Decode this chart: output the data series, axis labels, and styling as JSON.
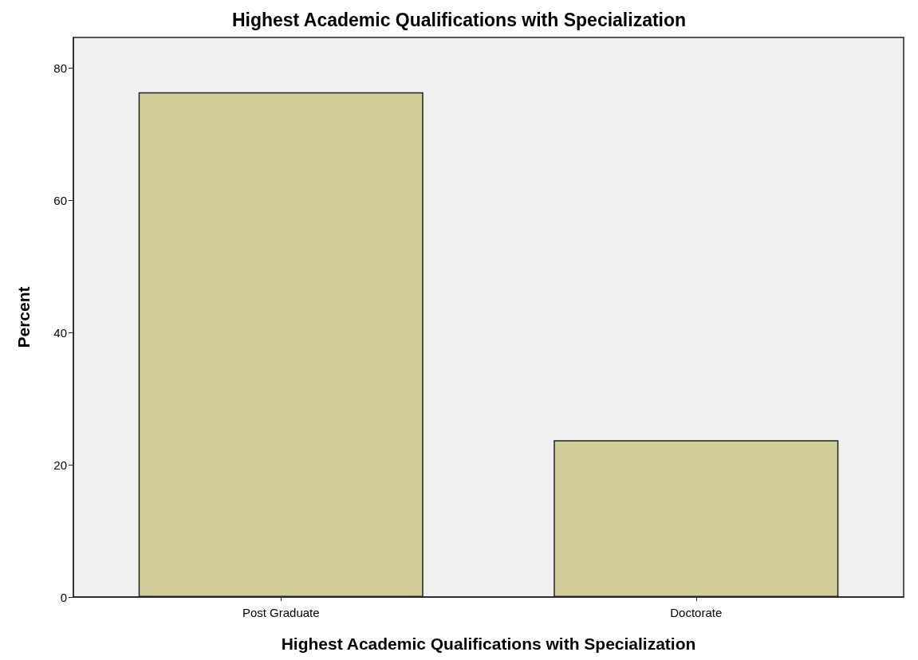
{
  "chart_data": {
    "type": "bar",
    "title": "Highest Academic Qualifications with Specialization",
    "xlabel": "Highest Academic Qualifications with Specialization",
    "ylabel": "Percent",
    "categories": [
      "Post Graduate",
      "Doctorate"
    ],
    "values": [
      76.3,
      23.7
    ],
    "color": "#d3ce98",
    "ylim": [
      0,
      84.6
    ],
    "yticks": [
      0,
      20,
      40,
      60,
      80
    ],
    "grid": false
  }
}
